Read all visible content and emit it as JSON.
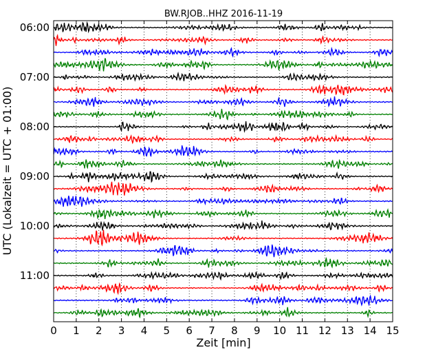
{
  "chart_data": {
    "type": "line",
    "title": "BW.RJOB..HHZ 2016-11-19",
    "xlabel": "Zeit  [min]",
    "ylabel": "UTC (Lokalzeit = UTC + 01:00)",
    "xlim": [
      0,
      15
    ],
    "x_ticks": [
      "0",
      "1",
      "2",
      "3",
      "4",
      "5",
      "6",
      "7",
      "8",
      "9",
      "10",
      "11",
      "12",
      "13",
      "14",
      "15"
    ],
    "y_ticks": [
      "06:00",
      "07:00",
      "08:00",
      "09:00",
      "10:00",
      "11:00"
    ],
    "grid": "vertical dotted at each minute",
    "trace_interval_minutes": 15,
    "start_time": "06:00",
    "color_cycle": [
      "#000000",
      "#ff0000",
      "#0000ff",
      "#008000"
    ],
    "traces": [
      {
        "start": "06:00"
      },
      {
        "start": "06:15"
      },
      {
        "start": "06:30"
      },
      {
        "start": "06:45"
      },
      {
        "start": "07:00"
      },
      {
        "start": "07:15"
      },
      {
        "start": "07:30"
      },
      {
        "start": "07:45"
      },
      {
        "start": "08:00"
      },
      {
        "start": "08:15"
      },
      {
        "start": "08:30"
      },
      {
        "start": "08:45"
      },
      {
        "start": "09:00"
      },
      {
        "start": "09:15"
      },
      {
        "start": "09:30"
      },
      {
        "start": "09:45"
      },
      {
        "start": "10:00"
      },
      {
        "start": "10:15"
      },
      {
        "start": "10:30"
      },
      {
        "start": "10:45"
      },
      {
        "start": "11:00"
      },
      {
        "start": "11:15"
      },
      {
        "start": "11:30"
      },
      {
        "start": "11:45"
      }
    ]
  }
}
